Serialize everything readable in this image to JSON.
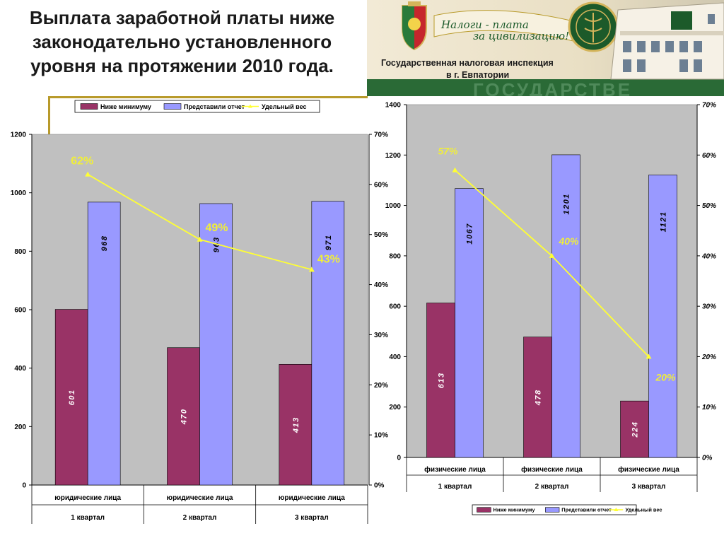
{
  "slide": {
    "title": "Выплата заработной платы ниже законодательно установленного уровня на протяжении 2010 года."
  },
  "banner": {
    "slogan_line1": "Налоги - плата",
    "slogan_line2": "за цивилизацию!",
    "org_line1": "Государственная налоговая инспекция",
    "org_line2": "в г. Евпатории",
    "bg_watermark": "ГОСУДАРСТВЕ",
    "colors": {
      "green": "#1c5a2a",
      "gold": "#d4b45a",
      "cream": "#efe6cf"
    }
  },
  "colors": {
    "bar_minimum": "#993366",
    "bar_reported": "#9999ff",
    "share_line": "#ffff33",
    "plot_bg": "#c0c0c0",
    "pct_label": "#f0ee3a",
    "frame": "#b89a2a"
  },
  "chart_data": [
    {
      "type": "bar",
      "categories": [
        [
          "юридические лица",
          "1 квартал"
        ],
        [
          "юридические лица",
          "2 квартал"
        ],
        [
          "юридические лица",
          "3 квартал"
        ]
      ],
      "series": [
        {
          "name": "Ниже минимуму",
          "values": [
            601,
            470,
            413
          ],
          "labels": [
            "601",
            "470",
            "413"
          ]
        },
        {
          "name": "Представили отчет",
          "values": [
            968,
            963,
            971
          ],
          "labels": [
            "968",
            "963",
            "971"
          ]
        },
        {
          "name": "Удельный вес",
          "type": "line",
          "axis": "secondary",
          "values": [
            62,
            49,
            43
          ],
          "labels": [
            "62%",
            "49%",
            "43%"
          ]
        }
      ],
      "ylim": [
        0,
        1200
      ],
      "yticks": [
        "0",
        "200",
        "400",
        "600",
        "800",
        "1000",
        "1200"
      ],
      "y2lim": [
        0,
        70
      ],
      "y2ticks": [
        "0%",
        "10%",
        "20%",
        "30%",
        "40%",
        "50%",
        "60%",
        "70%"
      ],
      "legend": "top",
      "grid": false
    },
    {
      "type": "bar",
      "categories": [
        [
          "физические лица",
          "1 квартал"
        ],
        [
          "физические лица",
          "2 квартал"
        ],
        [
          "физические лица",
          "3 квартал"
        ]
      ],
      "series": [
        {
          "name": "Ниже минимуму",
          "values": [
            613,
            478,
            224
          ],
          "labels": [
            "613",
            "478",
            "224"
          ]
        },
        {
          "name": "Представили отчет",
          "values": [
            1067,
            1201,
            1121
          ],
          "labels": [
            "1067",
            "1201",
            "1121"
          ]
        },
        {
          "name": "Удельный вес",
          "type": "line",
          "axis": "secondary",
          "values": [
            57,
            40,
            20
          ],
          "labels": [
            "57%",
            "40%",
            "20%"
          ]
        }
      ],
      "ylim": [
        0,
        1400
      ],
      "yticks": [
        "0",
        "200",
        "400",
        "600",
        "800",
        "1000",
        "1200",
        "1400"
      ],
      "y2lim": [
        0,
        70
      ],
      "y2ticks": [
        "0%",
        "10%",
        "20%",
        "30%",
        "40%",
        "50%",
        "60%",
        "70%"
      ],
      "legend": "bottom",
      "grid": false
    }
  ]
}
